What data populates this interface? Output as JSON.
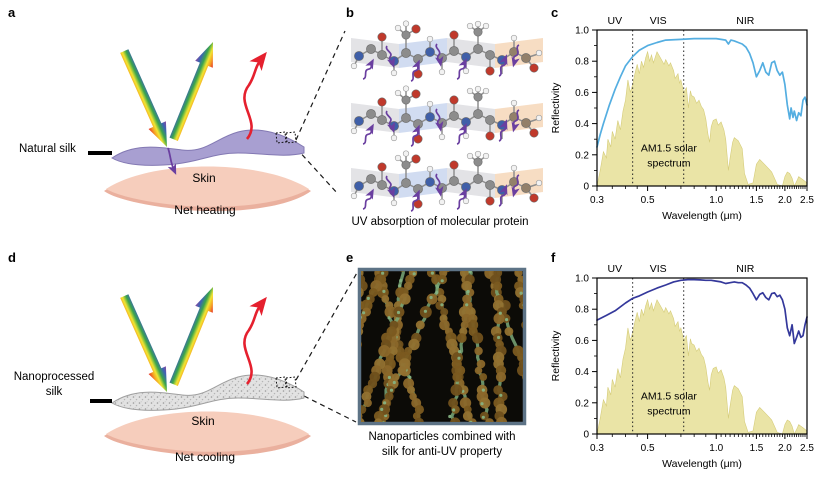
{
  "panels": {
    "a": {
      "label": "a",
      "silk_label": "Natural silk",
      "skin_label": "Skin",
      "caption": "Net heating"
    },
    "b": {
      "label": "b",
      "caption": "UV absorption of molecular protein"
    },
    "c": {
      "label": "c"
    },
    "d": {
      "label": "d",
      "silk_label_line1": "Nanoprocessed",
      "silk_label_line2": "silk",
      "skin_label": "Skin",
      "caption": "Net cooling"
    },
    "e": {
      "label": "e",
      "caption_line1": "Nanoparticles combined with",
      "caption_line2": "silk for anti-UV property"
    },
    "f": {
      "label": "f"
    }
  },
  "icons": {
    "incident_light": "rainbow-arrow-down-icon",
    "reflected_light": "rainbow-arrow-up-icon",
    "thermal_emission": "red-wavy-arrow-icon",
    "uv_transmission": "purple-arrow-icon",
    "uv_absorption": "purple-squiggle-arrow-icon",
    "zoom_region": "dotted-square-icon"
  },
  "colors": {
    "natural_silk": "#a89fd1",
    "natural_silk_edge": "#8379b3",
    "nanoprocessed_silk": "#e2e2e2",
    "nanoprocessed_silk_edge": "#9f9f9f",
    "skin": "#f6cdbc",
    "skin_shadow": "#eab09e",
    "heat_arrow": "#e5202e",
    "uv_arrow": "#6a3fa0",
    "curve_natural": "#54aee1",
    "curve_nano": "#34389b",
    "solar_fill": "#e7e09a",
    "solar_edge": "#d5cc7a",
    "fiber_browns": [
      "#7b5a1f",
      "#8a672a",
      "#6f501c",
      "#927030"
    ],
    "fiber_green": "#7aa878",
    "fiber_green_bright": "#86b584",
    "e_frame": "#5d7386",
    "e_background": "#0c0b07"
  },
  "solar_spectrum": {
    "name": "AM1.5 solar spectrum",
    "x": [
      0.3,
      0.31,
      0.32,
      0.33,
      0.335,
      0.345,
      0.35,
      0.36,
      0.37,
      0.38,
      0.39,
      0.4,
      0.41,
      0.42,
      0.43,
      0.44,
      0.45,
      0.46,
      0.47,
      0.48,
      0.49,
      0.5,
      0.51,
      0.52,
      0.53,
      0.55,
      0.57,
      0.59,
      0.6,
      0.62,
      0.63,
      0.65,
      0.66,
      0.68,
      0.69,
      0.7,
      0.72,
      0.74,
      0.755,
      0.77,
      0.78,
      0.8,
      0.82,
      0.84,
      0.86,
      0.88,
      0.9,
      0.92,
      0.935,
      0.95,
      0.97,
      1.0,
      1.02,
      1.05,
      1.08,
      1.1,
      1.13,
      1.15,
      1.18,
      1.2,
      1.25,
      1.3,
      1.33,
      1.38,
      1.45,
      1.5,
      1.55,
      1.6,
      1.65,
      1.7,
      1.75,
      1.8,
      1.85,
      1.95,
      2.0,
      2.05,
      2.1,
      2.15,
      2.2,
      2.27,
      2.3,
      2.35,
      2.4,
      2.45,
      2.5
    ],
    "values": [
      0.0,
      0.1,
      0.22,
      0.18,
      0.3,
      0.25,
      0.35,
      0.3,
      0.42,
      0.36,
      0.48,
      0.55,
      0.68,
      0.6,
      0.65,
      0.72,
      0.78,
      0.72,
      0.8,
      0.76,
      0.82,
      0.86,
      0.8,
      0.84,
      0.79,
      0.86,
      0.82,
      0.78,
      0.81,
      0.77,
      0.79,
      0.74,
      0.69,
      0.72,
      0.66,
      0.68,
      0.6,
      0.63,
      0.5,
      0.61,
      0.58,
      0.57,
      0.53,
      0.55,
      0.51,
      0.49,
      0.43,
      0.33,
      0.28,
      0.38,
      0.42,
      0.43,
      0.39,
      0.41,
      0.36,
      0.3,
      0.1,
      0.18,
      0.28,
      0.31,
      0.29,
      0.24,
      0.08,
      0.01,
      0.02,
      0.14,
      0.17,
      0.15,
      0.13,
      0.11,
      0.09,
      0.05,
      0.01,
      0.0,
      0.06,
      0.09,
      0.08,
      0.05,
      0.0,
      0.04,
      0.06,
      0.05,
      0.04,
      0.03,
      0.02
    ]
  },
  "chart_data": [
    {
      "id": "chart-c",
      "panel": "c",
      "type": "line",
      "xscale": "log",
      "grid": false,
      "legend": "none",
      "xlim": [
        0.3,
        2.5
      ],
      "ylim": [
        0,
        1.0
      ],
      "xlabel": "Wavelength (μm)",
      "ylabel": "Reflectivity",
      "x_ticks": {
        "values": [
          0.3,
          0.5,
          1.0,
          1.5,
          2.0,
          2.5
        ],
        "labels": [
          "0.3",
          "0.5",
          "1.0",
          "1.5",
          "2.0",
          "2.5"
        ],
        "minor": [
          0.35,
          0.4,
          0.45,
          0.6,
          0.7,
          0.8,
          0.9,
          1.05,
          1.1,
          1.15,
          1.2,
          1.25,
          1.3,
          1.35,
          1.4,
          1.45,
          1.55,
          1.6,
          1.65,
          1.7,
          1.75,
          1.8,
          1.85,
          1.9,
          1.95,
          2.05,
          2.1,
          2.15,
          2.2,
          2.25,
          2.3,
          2.35,
          2.4,
          2.45
        ]
      },
      "y_ticks": {
        "values": [
          0,
          0.2,
          0.4,
          0.6,
          0.8,
          1.0
        ],
        "labels": [
          "0",
          "0.2",
          "0.4",
          "0.6",
          "0.8",
          "1.0"
        ],
        "minor": [
          0.1,
          0.3,
          0.5,
          0.7,
          0.9
        ]
      },
      "regions": {
        "boundaries": [
          0.43,
          0.72
        ],
        "labels": [
          "UV",
          "VIS",
          "NIR"
        ]
      },
      "annotation": [
        "AM1.5 solar",
        "spectrum"
      ],
      "includes_solar_spectrum": true,
      "series": [
        {
          "name": "Natural silk reflectivity",
          "color": "#54aee1",
          "x": [
            0.3,
            0.31,
            0.32,
            0.34,
            0.36,
            0.38,
            0.4,
            0.43,
            0.46,
            0.5,
            0.55,
            0.6,
            0.7,
            0.8,
            0.9,
            1.0,
            1.05,
            1.1,
            1.13,
            1.16,
            1.2,
            1.25,
            1.3,
            1.35,
            1.4,
            1.45,
            1.5,
            1.55,
            1.6,
            1.65,
            1.7,
            1.75,
            1.8,
            1.85,
            1.9,
            1.95,
            2.0,
            2.05,
            2.1,
            2.13,
            2.17,
            2.2,
            2.25,
            2.3,
            2.35,
            2.4,
            2.45,
            2.5
          ],
          "y": [
            0.25,
            0.33,
            0.4,
            0.52,
            0.62,
            0.7,
            0.77,
            0.83,
            0.87,
            0.9,
            0.92,
            0.935,
            0.94,
            0.945,
            0.945,
            0.945,
            0.94,
            0.935,
            0.91,
            0.935,
            0.93,
            0.92,
            0.91,
            0.89,
            0.85,
            0.79,
            0.7,
            0.74,
            0.79,
            0.73,
            0.71,
            0.79,
            0.8,
            0.74,
            0.71,
            0.73,
            0.65,
            0.52,
            0.43,
            0.5,
            0.44,
            0.48,
            0.42,
            0.47,
            0.45,
            0.55,
            0.57,
            0.52
          ]
        }
      ]
    },
    {
      "id": "chart-f",
      "panel": "f",
      "type": "line",
      "xscale": "log",
      "grid": false,
      "legend": "none",
      "xlim": [
        0.3,
        2.5
      ],
      "ylim": [
        0,
        1.0
      ],
      "xlabel": "Wavelength (μm)",
      "ylabel": "Reflectivity",
      "x_ticks": {
        "values": [
          0.3,
          0.5,
          1.0,
          1.5,
          2.0,
          2.5
        ],
        "labels": [
          "0.3",
          "0.5",
          "1.0",
          "1.5",
          "2.0",
          "2.5"
        ],
        "minor": [
          0.35,
          0.4,
          0.45,
          0.6,
          0.7,
          0.8,
          0.9,
          1.05,
          1.1,
          1.15,
          1.2,
          1.25,
          1.3,
          1.35,
          1.4,
          1.45,
          1.55,
          1.6,
          1.65,
          1.7,
          1.75,
          1.8,
          1.85,
          1.9,
          1.95,
          2.05,
          2.1,
          2.15,
          2.2,
          2.25,
          2.3,
          2.35,
          2.4,
          2.45
        ]
      },
      "y_ticks": {
        "values": [
          0,
          0.2,
          0.4,
          0.6,
          0.8,
          1.0
        ],
        "labels": [
          "0",
          "0.2",
          "0.4",
          "0.6",
          "0.8",
          "1.0"
        ],
        "minor": [
          0.1,
          0.3,
          0.5,
          0.7,
          0.9
        ]
      },
      "regions": {
        "boundaries": [
          0.43,
          0.72
        ],
        "labels": [
          "UV",
          "VIS",
          "NIR"
        ]
      },
      "annotation": [
        "AM1.5 solar",
        "spectrum"
      ],
      "includes_solar_spectrum": true,
      "series": [
        {
          "name": "Nanoprocessed silk reflectivity",
          "color": "#34389b",
          "x": [
            0.3,
            0.33,
            0.36,
            0.4,
            0.43,
            0.46,
            0.5,
            0.55,
            0.6,
            0.65,
            0.7,
            0.75,
            0.8,
            0.85,
            0.9,
            0.95,
            1.0,
            1.05,
            1.1,
            1.15,
            1.2,
            1.25,
            1.3,
            1.35,
            1.4,
            1.45,
            1.5,
            1.55,
            1.6,
            1.65,
            1.7,
            1.75,
            1.8,
            1.85,
            1.9,
            1.95,
            2.0,
            2.05,
            2.1,
            2.15,
            2.2,
            2.25,
            2.3,
            2.35,
            2.4,
            2.45,
            2.5
          ],
          "y": [
            0.73,
            0.76,
            0.79,
            0.84,
            0.87,
            0.885,
            0.91,
            0.935,
            0.955,
            0.975,
            0.985,
            0.99,
            0.99,
            0.988,
            0.985,
            0.985,
            0.98,
            0.975,
            0.965,
            0.97,
            0.975,
            0.97,
            0.97,
            0.955,
            0.935,
            0.9,
            0.86,
            0.895,
            0.905,
            0.875,
            0.86,
            0.9,
            0.905,
            0.88,
            0.89,
            0.86,
            0.8,
            0.68,
            0.63,
            0.7,
            0.58,
            0.62,
            0.66,
            0.62,
            0.63,
            0.7,
            0.75
          ]
        }
      ]
    }
  ]
}
